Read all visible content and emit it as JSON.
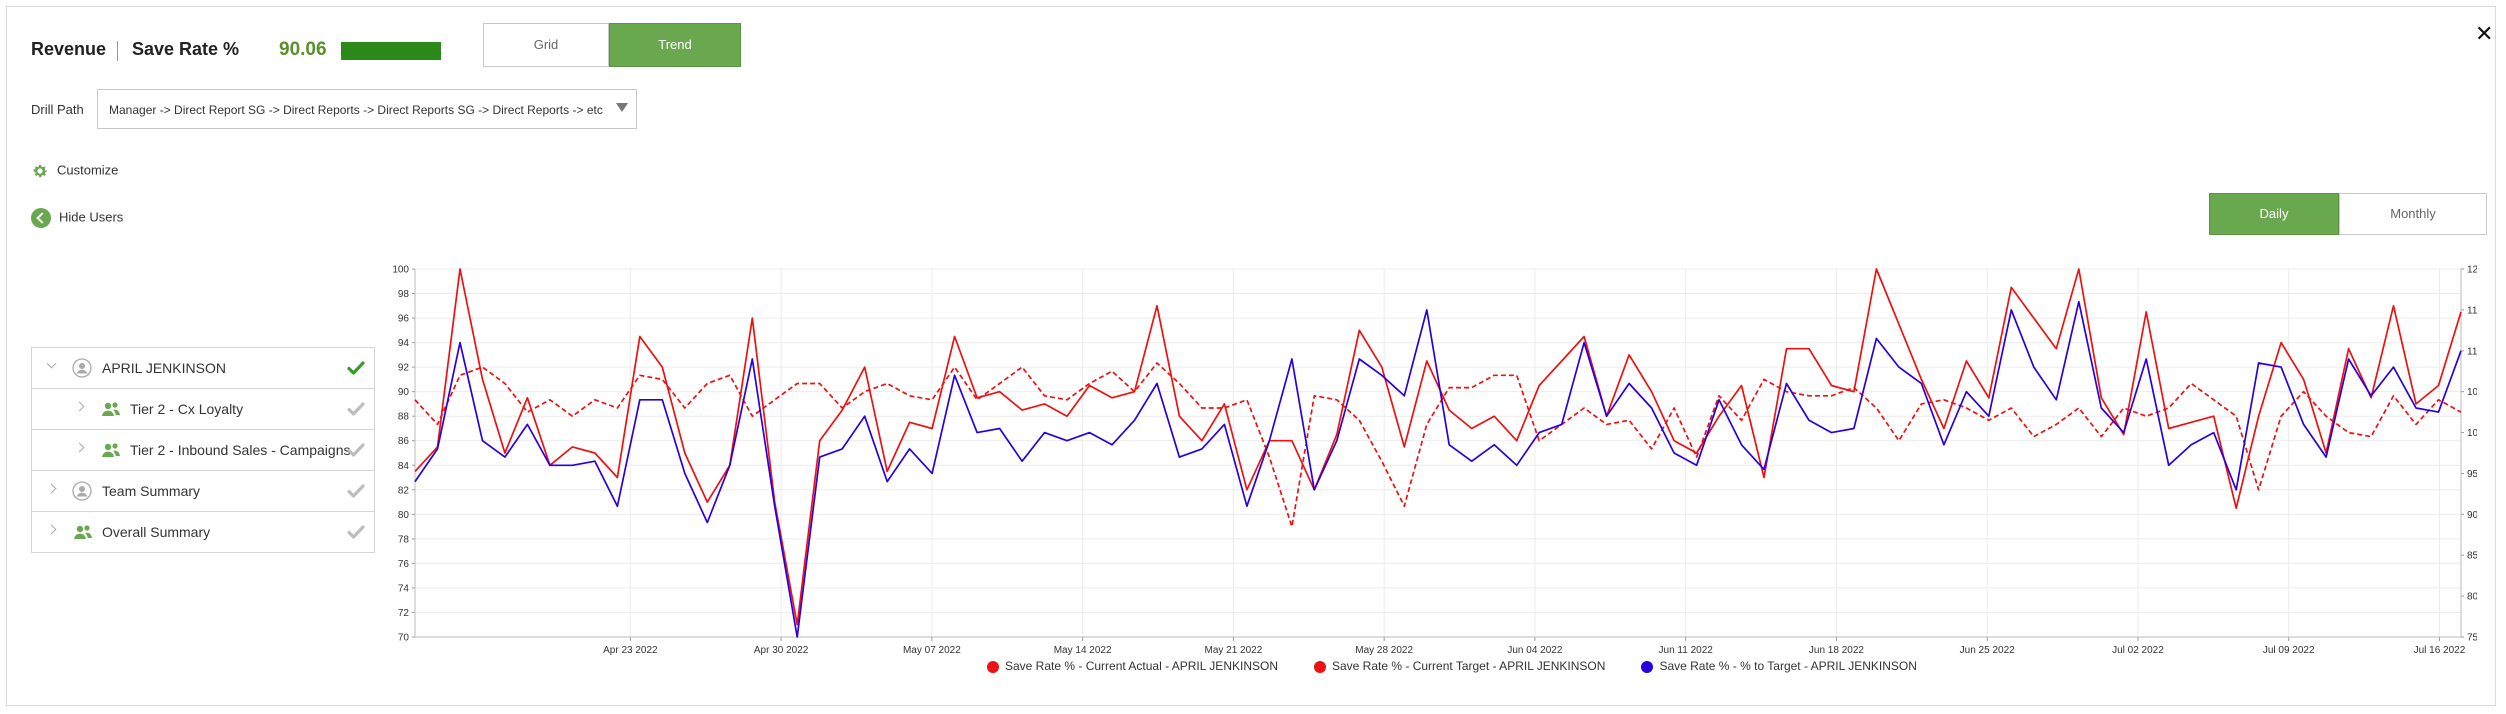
{
  "header": {
    "title": "Revenue",
    "metric_label": "Save Rate %",
    "metric_value": "90.06",
    "close_glyph": "✕"
  },
  "view_toggle": {
    "grid_label": "Grid",
    "trend_label": "Trend",
    "active": "Trend"
  },
  "drill": {
    "label": "Drill Path",
    "value": "Manager -> Direct Report SG -> Direct Reports -> Direct Reports SG -> Direct Reports -> etc"
  },
  "links": {
    "customize": "Customize",
    "hide_users": "Hide Users"
  },
  "period_toggle": {
    "daily_label": "Daily",
    "monthly_label": "Monthly",
    "active": "Daily"
  },
  "tree": [
    {
      "label": "APRIL JENKINSON",
      "icon": "user-icon",
      "level": 0,
      "expanded": true,
      "checked": true
    },
    {
      "label": "Tier 2 - Cx Loyalty",
      "icon": "group-icon",
      "level": 1,
      "expanded": false,
      "checked": false
    },
    {
      "label": "Tier 2 - Inbound Sales - Campaigns",
      "icon": "group-icon",
      "level": 1,
      "expanded": false,
      "checked": false
    },
    {
      "label": "Team Summary",
      "icon": "user-icon",
      "level": 0,
      "expanded": false,
      "checked": false
    },
    {
      "label": "Overall Summary",
      "icon": "group-icon",
      "level": 0,
      "expanded": false,
      "checked": false
    }
  ],
  "colors": {
    "accent": "#6aa84f",
    "bar": "#2c8a1a",
    "red": "#ee1111",
    "blue": "#2a00e0",
    "check_active": "#3a9a2a",
    "check_inactive": "#bdbdbd"
  },
  "chart_data": {
    "type": "line",
    "x_range": [
      "2022-04-13",
      "2022-07-17"
    ],
    "x_ticks": [
      "Apr 23 2022",
      "Apr 30 2022",
      "May 07 2022",
      "May 14 2022",
      "May 21 2022",
      "May 28 2022",
      "Jun 04 2022",
      "Jun 11 2022",
      "Jun 18 2022",
      "Jun 25 2022",
      "Jul 02 2022",
      "Jul 09 2022",
      "Jul 16 2022"
    ],
    "y_left": {
      "min": 70,
      "max": 100,
      "ticks": [
        70,
        72,
        74,
        76,
        78,
        80,
        82,
        84,
        86,
        88,
        90,
        92,
        94,
        96,
        98,
        100
      ]
    },
    "y_right": {
      "min": 75,
      "max": 120,
      "ticks": [
        75,
        80,
        85,
        90,
        95,
        100,
        105,
        110,
        115,
        120
      ]
    },
    "grid": true,
    "legend_position": "bottom-center",
    "series": [
      {
        "name": "Save Rate % - Current Actual - APRIL JENKINSON",
        "axis": "left",
        "style": "solid",
        "color": "#ee1111",
        "values": [
          83.5,
          85.5,
          100,
          91,
          85,
          89.5,
          84,
          85.5,
          85,
          83,
          94.5,
          92,
          85,
          81,
          84,
          96,
          81,
          71,
          86,
          88.5,
          92,
          83.5,
          87.5,
          87,
          94.5,
          89.5,
          90,
          88.5,
          89,
          88,
          90.5,
          89.5,
          90,
          97,
          88,
          86,
          89,
          82,
          86,
          86,
          82,
          86.5,
          95,
          92,
          85.5,
          92.5,
          88.5,
          87,
          88,
          86,
          90.5,
          92.5,
          94.5,
          88,
          93,
          90,
          86,
          85,
          88,
          90.5,
          83,
          93.5,
          93.5,
          90.5,
          90,
          100,
          95.5,
          91,
          87,
          92.5,
          89.5,
          98.5,
          96,
          93.5,
          100,
          89.5,
          86.5,
          96.5,
          87,
          87.5,
          88,
          80.5,
          88,
          94,
          91,
          85,
          93.5,
          89.5,
          97,
          89,
          90.5,
          96.5
        ]
      },
      {
        "name": "Save Rate % - Current Target - APRIL JENKINSON",
        "axis": "right",
        "style": "dashed",
        "color": "#ee1111",
        "values": [
          104,
          101,
          107,
          108,
          106,
          102.5,
          104,
          102,
          104,
          103,
          107,
          106.5,
          103,
          106,
          107,
          102,
          104,
          106,
          106,
          103,
          105,
          106,
          104.5,
          104,
          108,
          104,
          106,
          108,
          104.5,
          104,
          106,
          107.5,
          105,
          108.5,
          106,
          103,
          103,
          104,
          97,
          88.5,
          104.5,
          104,
          101.5,
          96.5,
          91,
          101,
          105.5,
          105.5,
          107,
          107,
          99,
          101,
          103,
          101,
          101.5,
          98,
          103,
          97,
          104.5,
          101.5,
          106.5,
          105,
          104.5,
          104.5,
          105.5,
          103,
          99,
          103.5,
          104,
          103,
          101.5,
          103,
          99.5,
          101,
          103,
          99.5,
          103,
          102,
          103,
          106,
          104,
          102,
          93,
          102,
          105,
          102,
          100,
          99.5,
          104.5,
          101,
          104,
          102.5
        ]
      },
      {
        "name": "Save Rate % - % to Target - APRIL JENKINSON",
        "axis": "right",
        "style": "solid",
        "color": "#2a00e0",
        "values": [
          94,
          98,
          111,
          99,
          97,
          101,
          96,
          96,
          96.5,
          91,
          104,
          104,
          95,
          89,
          96,
          109,
          91,
          75,
          97,
          98,
          102,
          94,
          98,
          95,
          107,
          100,
          100.5,
          96.5,
          100,
          99,
          100,
          98.5,
          101.5,
          106,
          97,
          98,
          101,
          91,
          99,
          109,
          93,
          99,
          109,
          107,
          104.5,
          115,
          98.5,
          96.5,
          98.5,
          96,
          100,
          101,
          111,
          102,
          106,
          103,
          97.5,
          96,
          104,
          98.5,
          95.5,
          106,
          101.5,
          100,
          100.5,
          111.5,
          108,
          106,
          98.5,
          105,
          102,
          115,
          108,
          104,
          116,
          103,
          100,
          109,
          96,
          98.5,
          100,
          93,
          108.5,
          108,
          101,
          97,
          109,
          104.5,
          108,
          103,
          102.5,
          110
        ]
      }
    ]
  }
}
